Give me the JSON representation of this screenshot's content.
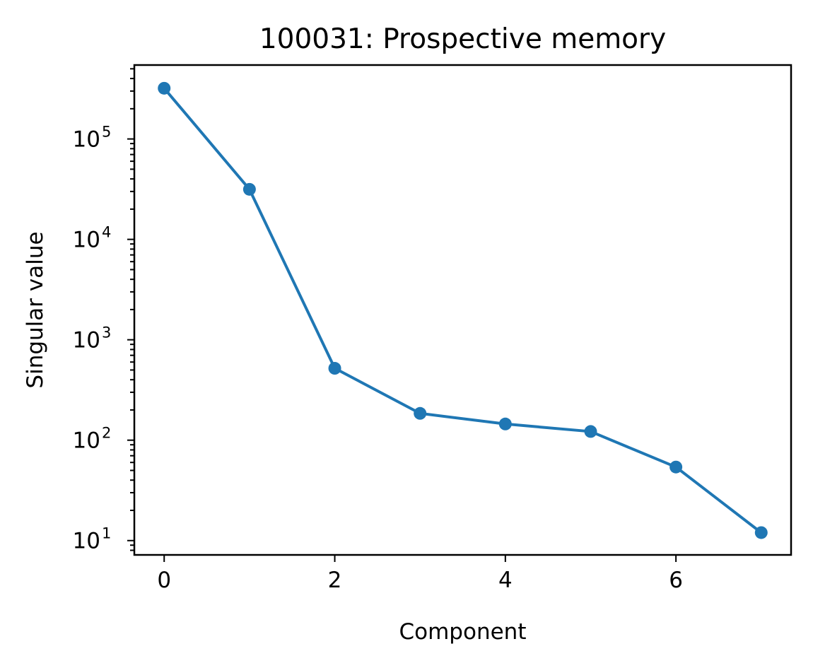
{
  "chart_data": {
    "type": "line",
    "title": "100031: Prospective memory",
    "xlabel": "Component",
    "ylabel": "Singular value",
    "x": [
      0,
      1,
      2,
      3,
      4,
      5,
      6,
      7
    ],
    "series": [
      {
        "values": [
          320000,
          31500,
          520,
          185,
          145,
          122,
          54,
          12
        ],
        "color": "#1f77b4"
      }
    ],
    "x_ticks": [
      0,
      2,
      4,
      6
    ],
    "x_tick_labels": [
      "0",
      "2",
      "4",
      "6"
    ],
    "y_scale": "log",
    "y_ticks": [
      10,
      100,
      1000,
      10000,
      100000
    ],
    "y_tick_labels": [
      {
        "base": "10",
        "exp": "1"
      },
      {
        "base": "10",
        "exp": "2"
      },
      {
        "base": "10",
        "exp": "3"
      },
      {
        "base": "10",
        "exp": "4"
      },
      {
        "base": "10",
        "exp": "5"
      }
    ],
    "xlim": [
      -0.35,
      7.35
    ],
    "ylim": [
      7.2,
      545000
    ],
    "grid": false,
    "legend": "none"
  }
}
